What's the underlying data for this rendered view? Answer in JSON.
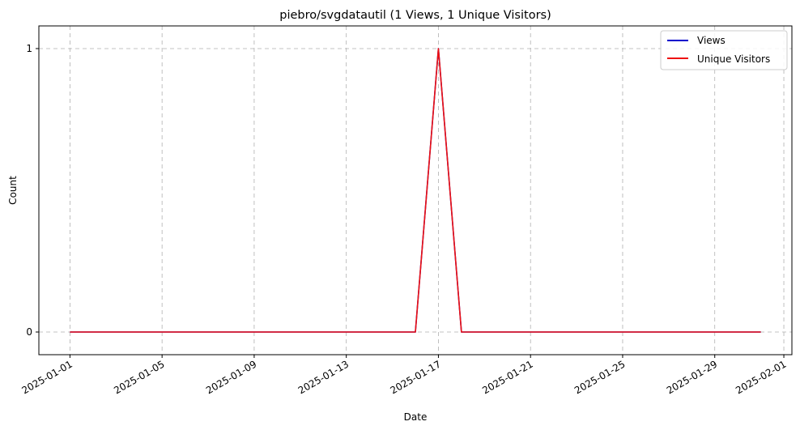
{
  "chart_data": {
    "type": "line",
    "title": "piebro/svgdatautil (1 Views, 1 Unique Visitors)",
    "xlabel": "Date",
    "ylabel": "Count",
    "x": [
      "2025-01-01",
      "2025-01-02",
      "2025-01-03",
      "2025-01-04",
      "2025-01-05",
      "2025-01-06",
      "2025-01-07",
      "2025-01-08",
      "2025-01-09",
      "2025-01-10",
      "2025-01-11",
      "2025-01-12",
      "2025-01-13",
      "2025-01-14",
      "2025-01-15",
      "2025-01-16",
      "2025-01-17",
      "2025-01-18",
      "2025-01-19",
      "2025-01-20",
      "2025-01-21",
      "2025-01-22",
      "2025-01-23",
      "2025-01-24",
      "2025-01-25",
      "2025-01-26",
      "2025-01-27",
      "2025-01-28",
      "2025-01-29",
      "2025-01-30",
      "2025-01-31"
    ],
    "series": [
      {
        "name": "Views",
        "color": "#0000cc",
        "values": [
          0,
          0,
          0,
          0,
          0,
          0,
          0,
          0,
          0,
          0,
          0,
          0,
          0,
          0,
          0,
          0,
          1,
          0,
          0,
          0,
          0,
          0,
          0,
          0,
          0,
          0,
          0,
          0,
          0,
          0,
          0
        ]
      },
      {
        "name": "Unique Visitors",
        "color": "#ee1111",
        "values": [
          0,
          0,
          0,
          0,
          0,
          0,
          0,
          0,
          0,
          0,
          0,
          0,
          0,
          0,
          0,
          0,
          1,
          0,
          0,
          0,
          0,
          0,
          0,
          0,
          0,
          0,
          0,
          0,
          0,
          0,
          0
        ]
      }
    ],
    "xticks": [
      "2025-01-01",
      "2025-01-05",
      "2025-01-09",
      "2025-01-13",
      "2025-01-17",
      "2025-01-21",
      "2025-01-25",
      "2025-01-29",
      "2025-02-01"
    ],
    "yticks": [
      0,
      1
    ],
    "ylim": [
      -0.08,
      1.08
    ],
    "xlim": [
      "2024-12-30T15:36",
      "2025-02-01T08:24"
    ],
    "grid": true,
    "legend": "top-right"
  }
}
